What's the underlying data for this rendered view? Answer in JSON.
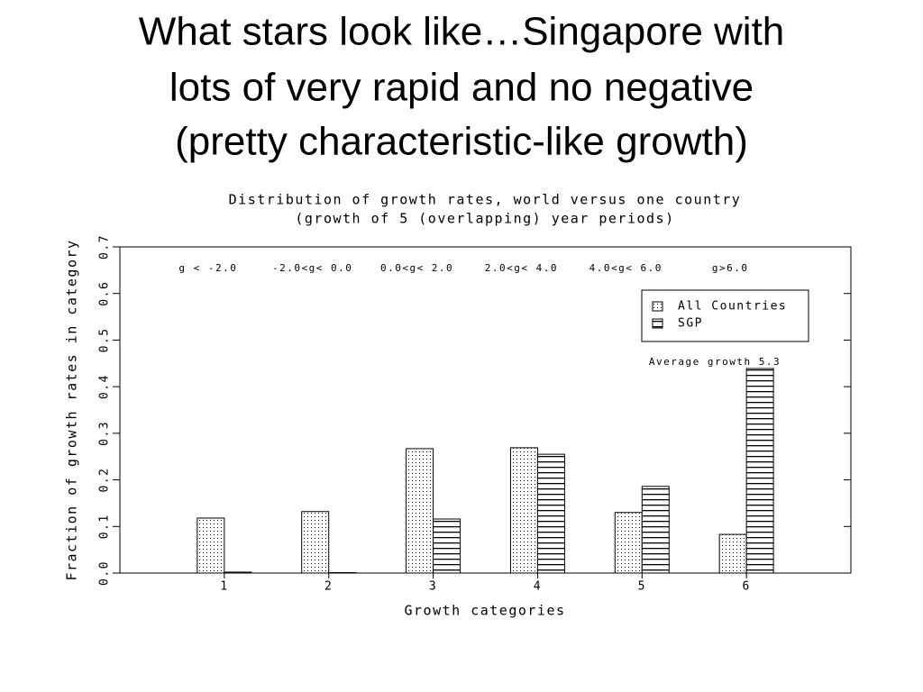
{
  "slide": {
    "title_lines": [
      "What stars look like…Singapore with",
      "lots of very rapid and no negative",
      "(pretty characteristic-like growth)"
    ]
  },
  "chart_data": {
    "type": "bar",
    "title": "Distribution of growth rates, world versus one country",
    "subtitle": "(growth of 5 (overlapping) year periods)",
    "x_label": "Growth categories",
    "y_label": "Fraction of growth rates in category",
    "x": [
      1,
      2,
      3,
      4,
      5,
      6
    ],
    "xlim": [
      0,
      7
    ],
    "xticks": [
      1,
      2,
      3,
      4,
      5,
      6
    ],
    "ylim": [
      0,
      0.7
    ],
    "yticks": [
      {
        "value": 0,
        "label": "0.0"
      },
      0.1,
      0.2,
      0.3,
      0.4,
      0.5,
      0.6,
      0.7
    ],
    "category_notes": [
      "g < -2.0",
      "-2.0<g< 0.0",
      "0.0<g< 2.0",
      "2.0<g< 4.0",
      "4.0<g< 6.0",
      "g>6.0"
    ],
    "annotation": "Average growth 5.3",
    "legend": "upper right",
    "series": [
      {
        "name": "All Countries",
        "color": "#000000",
        "pattern": "dots",
        "values": [
          0.118,
          0.132,
          0.267,
          0.269,
          0.13,
          0.083
        ]
      },
      {
        "name": "SGP",
        "color": "#000000",
        "pattern": "hlines",
        "values": [
          0.002,
          0.001,
          0.116,
          0.255,
          0.186,
          0.439
        ]
      }
    ]
  }
}
